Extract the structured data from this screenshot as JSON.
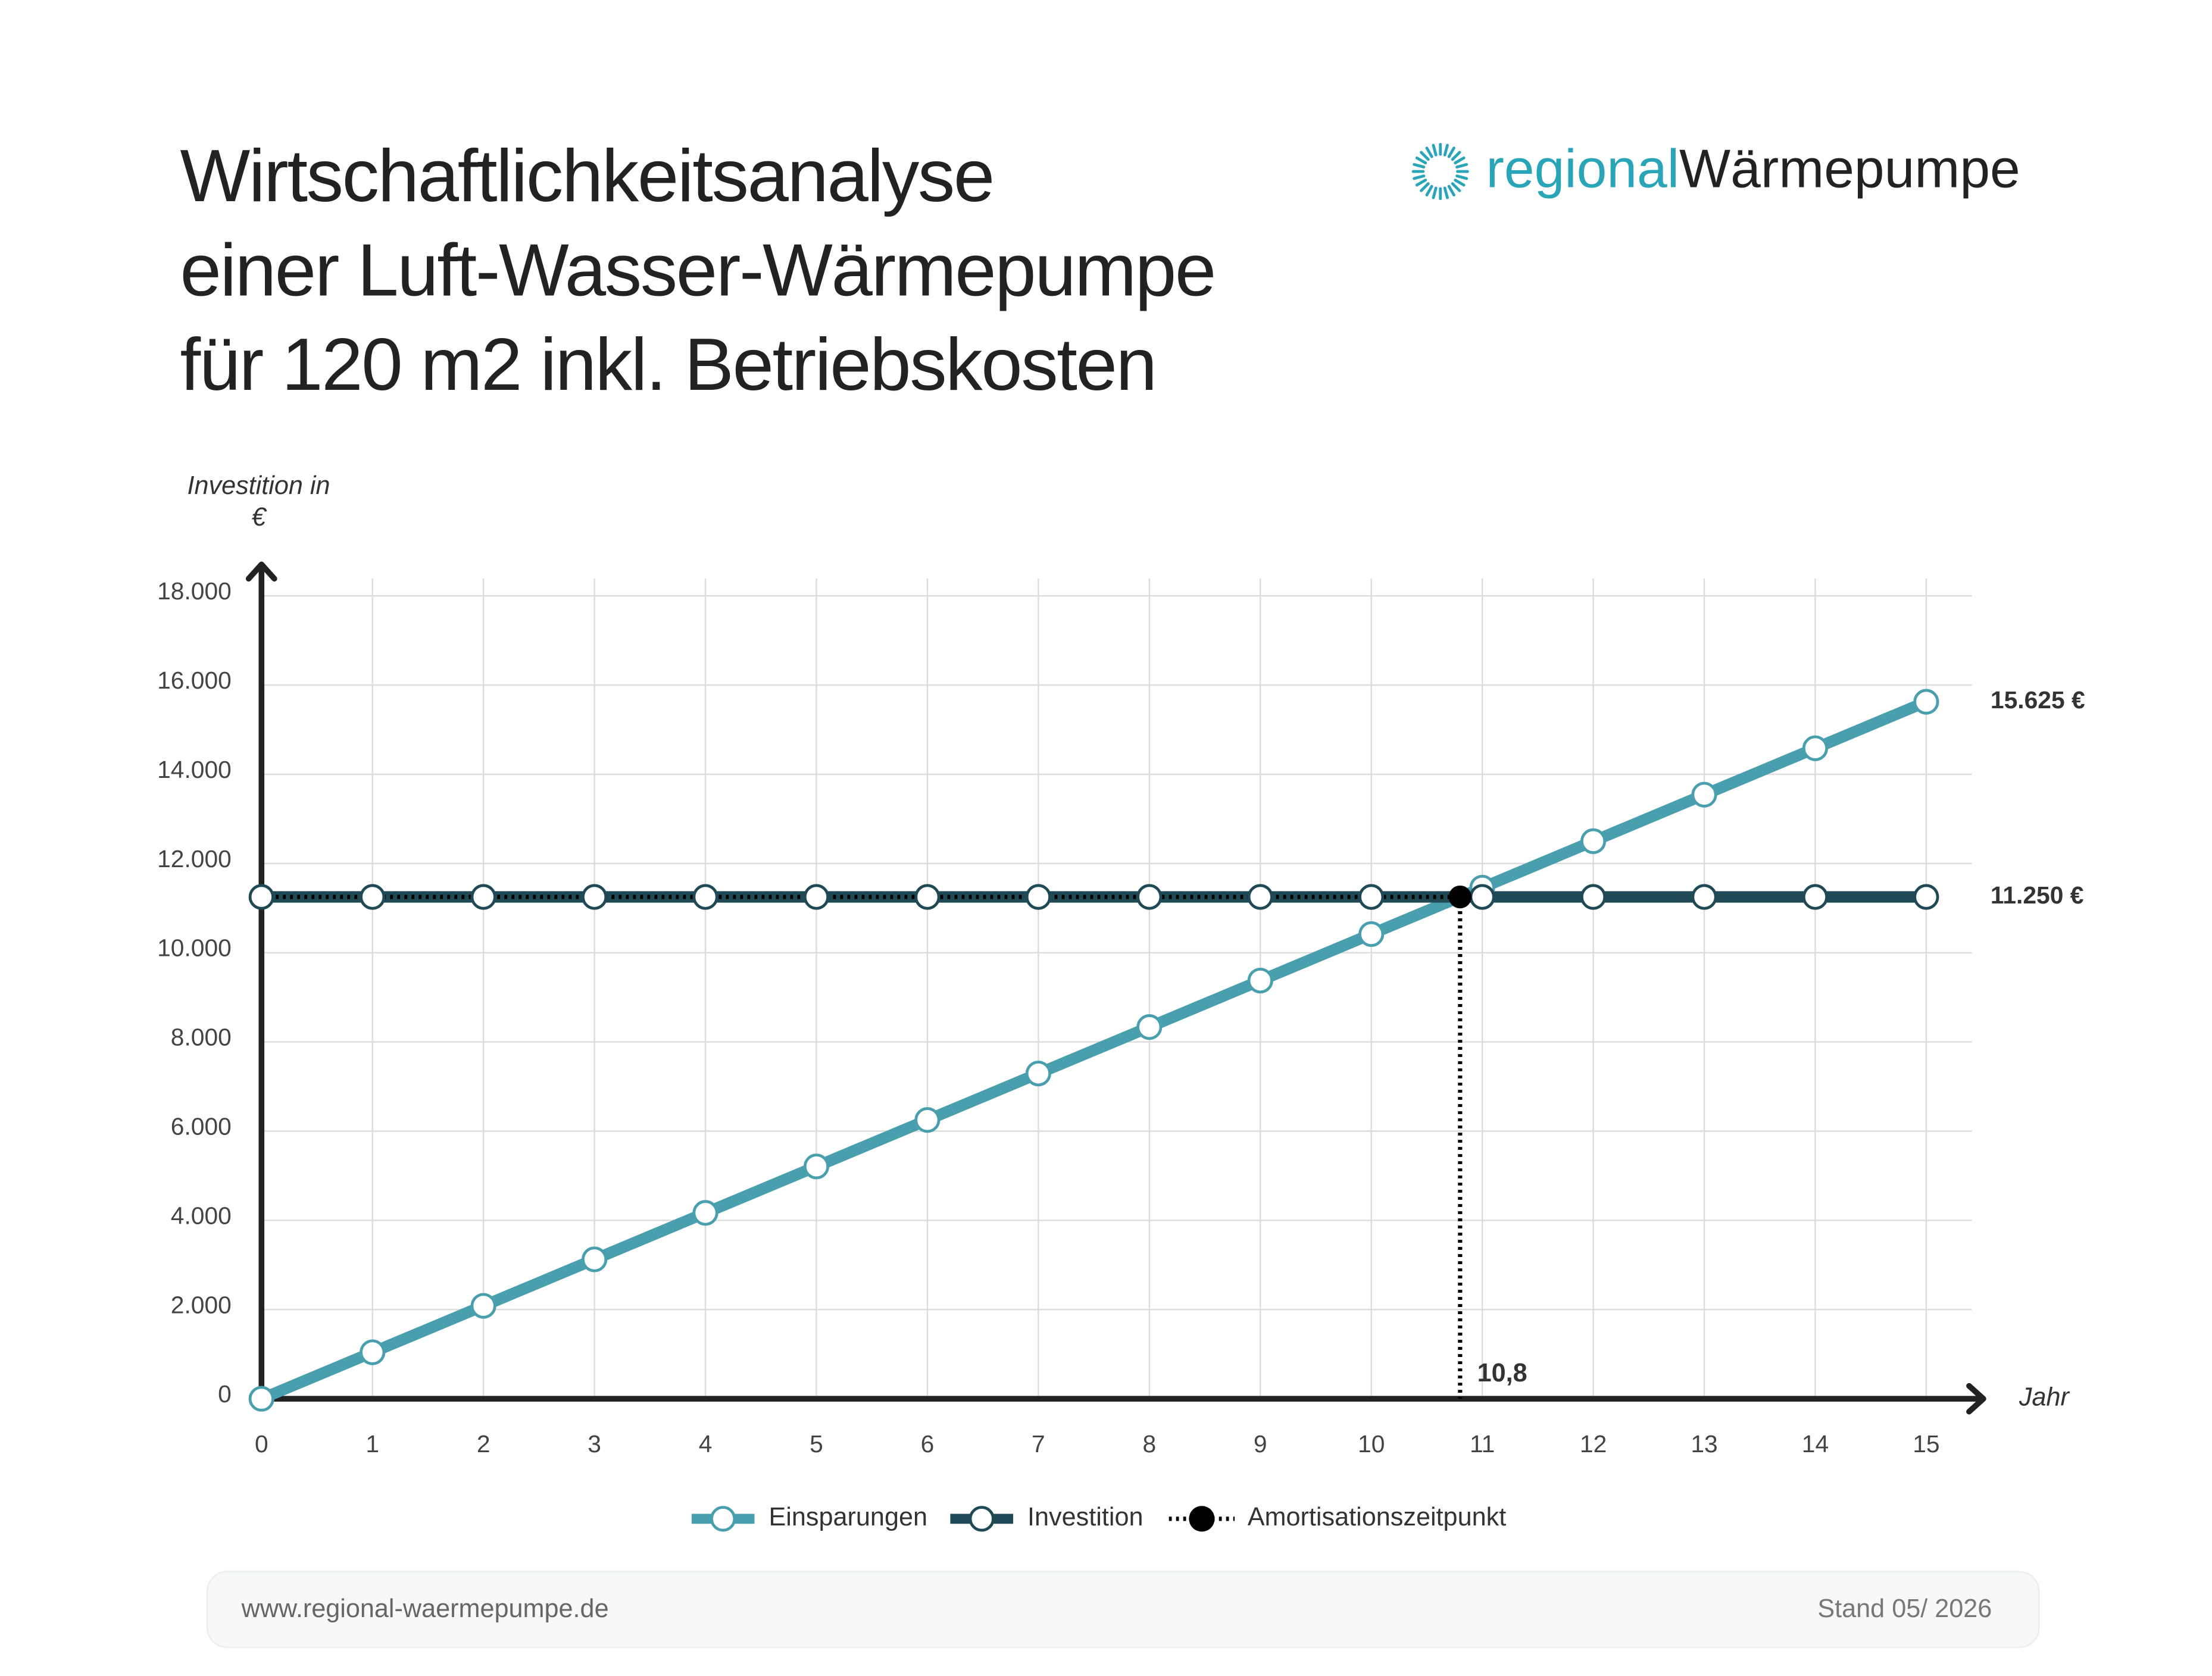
{
  "chart_data": {
    "type": "line",
    "title": [
      "Wirtschaftlichkeitsanalyse",
      "einer Luft-Wasser-Wärmepumpe",
      "für 120 m2 inkl. Betriebskosten"
    ],
    "brand": [
      "regional",
      "Wärmepumpe"
    ],
    "ylabel": [
      "Investition in",
      "€"
    ],
    "xlabel": "Jahr",
    "x": [
      0,
      1,
      2,
      3,
      4,
      5,
      6,
      7,
      8,
      9,
      10,
      11,
      12,
      13,
      14,
      15
    ],
    "series": [
      {
        "name": "Einsparungen",
        "color": "#4a9fae",
        "values": [
          0,
          1042,
          2083,
          3125,
          4167,
          5208,
          6250,
          7292,
          8333,
          9375,
          10417,
          11458,
          12500,
          13542,
          14583,
          15625
        ],
        "end_label": "15.625 €"
      },
      {
        "name": "Investition",
        "color": "#1f4a55",
        "values": [
          11250,
          11250,
          11250,
          11250,
          11250,
          11250,
          11250,
          11250,
          11250,
          11250,
          11250,
          11250,
          11250,
          11250,
          11250,
          11250
        ],
        "end_label": "11.250 €"
      }
    ],
    "breakeven": {
      "name": "Amortisationszeitpunkt",
      "color": "#000000",
      "x": 10.8,
      "y": 11250,
      "x_label": "10,8"
    },
    "xlim": [
      0,
      15
    ],
    "ylim": [
      0,
      18000
    ],
    "xticks": [
      0,
      1,
      2,
      3,
      4,
      5,
      6,
      7,
      8,
      9,
      10,
      11,
      12,
      13,
      14,
      15
    ],
    "yticks": [
      0,
      {
        "value": 2000,
        "label": "2.000"
      },
      {
        "value": 4000,
        "label": "4.000"
      },
      {
        "value": 6000,
        "label": "6.000"
      },
      {
        "value": 8000,
        "label": "8.000"
      },
      {
        "value": 10000,
        "label": "10.000"
      },
      {
        "value": 12000,
        "label": "12.000"
      },
      {
        "value": 14000,
        "label": "14.000"
      },
      {
        "value": 16000,
        "label": "16.000"
      },
      {
        "value": 18000,
        "label": "18.000"
      }
    ],
    "grid": true,
    "legend": "bottom",
    "footer": {
      "url": "www.regional-waermepumpe.de",
      "date": "Stand 05/ 2026"
    }
  }
}
